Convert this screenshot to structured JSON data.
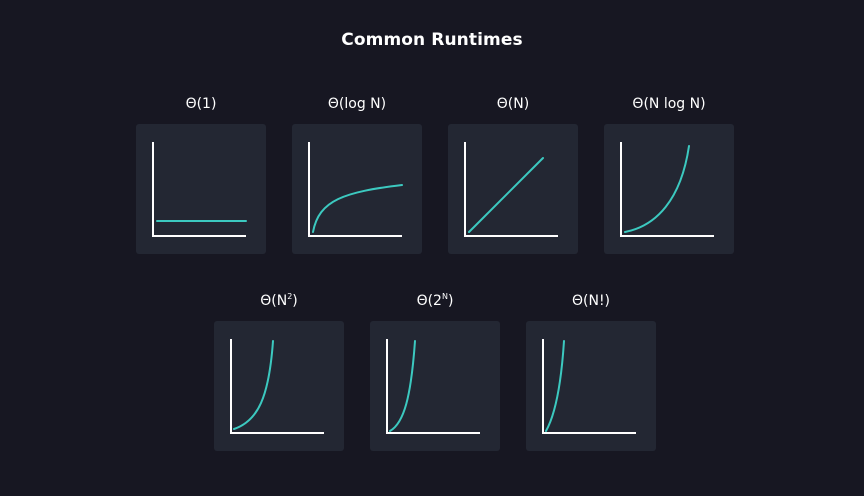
{
  "title": "Common Runtimes",
  "colors": {
    "background": "#171722",
    "tile": "#232733",
    "axis": "#ffffff",
    "curve": "#3cc9c0"
  },
  "cards": [
    {
      "id": "constant",
      "label_base": "Θ(1)",
      "label_sup": "",
      "label_tail": ""
    },
    {
      "id": "log",
      "label_base": "Θ(log N)",
      "label_sup": "",
      "label_tail": ""
    },
    {
      "id": "linear",
      "label_base": "Θ(N)",
      "label_sup": "",
      "label_tail": ""
    },
    {
      "id": "nlogn",
      "label_base": "Θ(N log N)",
      "label_sup": "",
      "label_tail": ""
    },
    {
      "id": "quadratic",
      "label_base": "Θ(N",
      "label_sup": "2",
      "label_tail": ")"
    },
    {
      "id": "exponential",
      "label_base": "Θ(2",
      "label_sup": "N",
      "label_tail": ")"
    },
    {
      "id": "factorial",
      "label_base": "Θ(N!)",
      "label_sup": "",
      "label_tail": ""
    }
  ]
}
